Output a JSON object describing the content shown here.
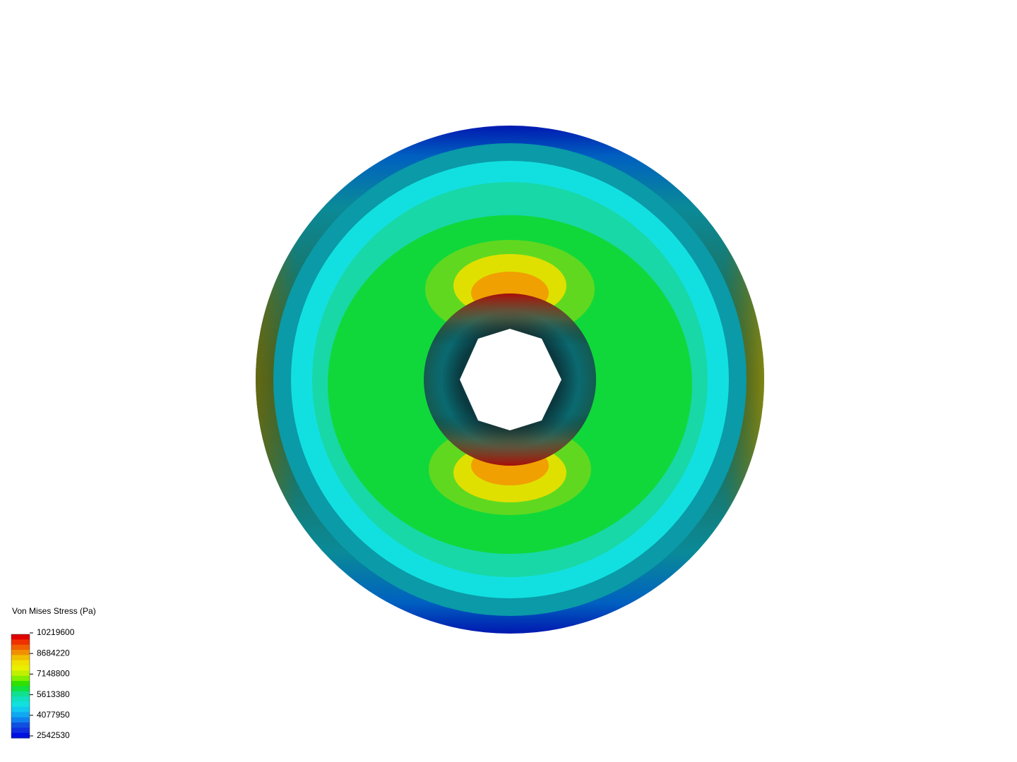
{
  "legend": {
    "title": "Von Mises Stress (Pa)",
    "ticks": [
      10219600,
      8684220,
      7148800,
      5613380,
      4077950,
      2542530
    ]
  }
}
